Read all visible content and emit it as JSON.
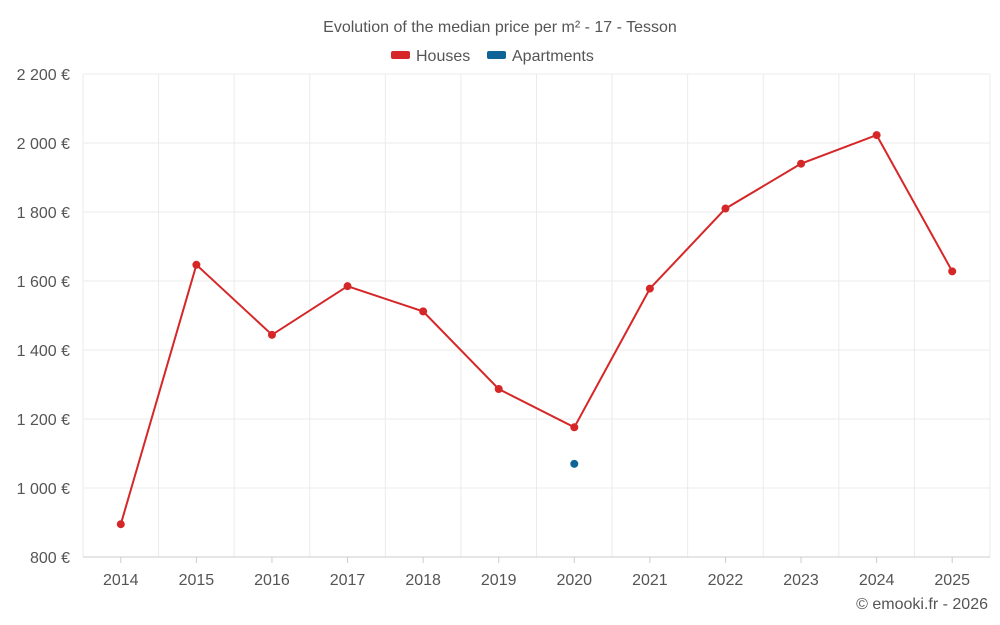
{
  "chart_data": {
    "type": "line",
    "title": "Evolution of the median price per m² - 17 - Tesson",
    "categories": [
      "2014",
      "2015",
      "2016",
      "2017",
      "2018",
      "2019",
      "2020",
      "2021",
      "2022",
      "2023",
      "2024",
      "2025"
    ],
    "series": [
      {
        "name": "Houses",
        "color": "#d62728",
        "values": [
          895,
          1647,
          1444,
          1585,
          1512,
          1287,
          1176,
          1578,
          1810,
          1940,
          2023,
          1628
        ]
      },
      {
        "name": "Apartments",
        "color": "#0e6496",
        "values": [
          null,
          null,
          null,
          null,
          null,
          null,
          1070,
          null,
          null,
          null,
          null,
          null
        ]
      }
    ],
    "y_ticks": [
      "800 €",
      "1 000 €",
      "1 200 €",
      "1 400 €",
      "1 600 €",
      "1 800 €",
      "2 000 €",
      "2 200 €"
    ],
    "y_tick_values": [
      800,
      1000,
      1200,
      1400,
      1600,
      1800,
      2000,
      2200
    ],
    "ylim": [
      800,
      2200
    ],
    "xlabel": "",
    "ylabel": "",
    "grid": true,
    "legend_position": "top-center"
  },
  "credit": "© emooki.fr - 2026"
}
